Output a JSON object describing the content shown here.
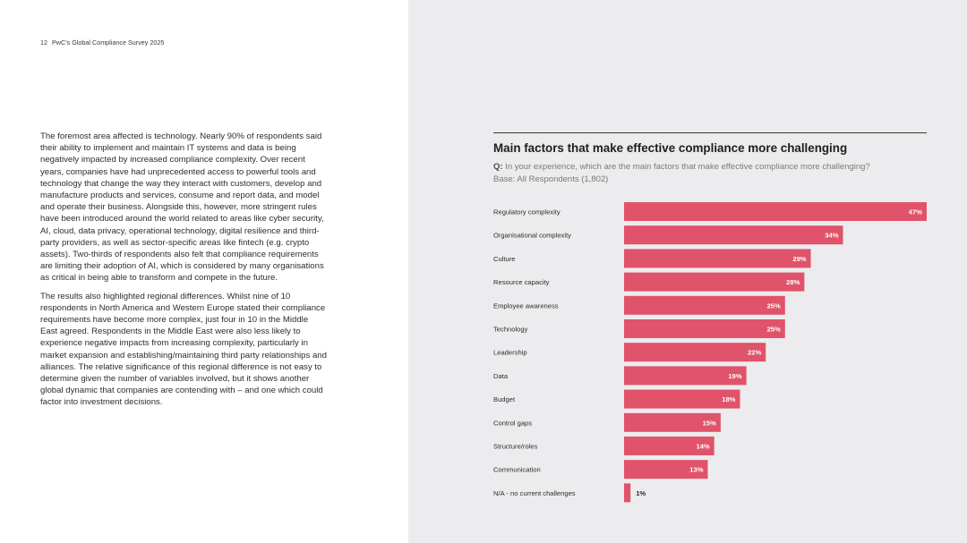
{
  "header": {
    "page_number": "12",
    "publication": "PwC’s Global Compliance Survey 2025"
  },
  "body": {
    "paragraph_1": "The foremost area affected is technology. Nearly 90% of respondents said their ability to implement and maintain IT systems and data is being negatively impacted by increased compliance complexity. Over recent years, companies have had unprecedented access to powerful tools and technology that change the way they interact with customers, develop and manufacture products and services, consume and report data, and model and operate their business. Alongside this, however, more stringent rules have been introduced around the world related to areas like cyber security, AI, cloud, data privacy, operational technology, digital resilience and third-party providers, as well as sector-specific areas like fintech (e.g. crypto assets). Two-thirds of respondents also felt that compliance requirements are limiting their adoption of AI, which is considered by many organisations as critical in being able to transform and compete in the future.",
    "paragraph_2": "The results also highlighted regional differences. Whilst nine of 10 respondents in North America and Western Europe stated their compliance requirements have become more complex, just four in 10 in the Middle East agreed. Respondents in the Middle East were also less likely to experience negative impacts from increasing complexity, particularly in market expansion and establishing/maintaining third party relationships and alliances. The relative significance of this regional difference is not easy to determine given the number of variables involved, but it shows another global dynamic that companies are contending with – and one which could factor into investment decisions."
  },
  "chart_data": {
    "type": "bar",
    "orientation": "horizontal",
    "title": "Main factors that make effective compliance more challenging",
    "question_prefix": "Q:",
    "question": "In your experience, which are the main factors that make effective compliance more challenging?",
    "base": "Base: All Respondents (1,802)",
    "categories": [
      "Regulatory complexity",
      "Organisational complexity",
      "Culture",
      "Resource capacity",
      "Employee awareness",
      "Technology",
      "Leadership",
      "Data",
      "Budget",
      "Control gaps",
      "Structure/roles",
      "Communication",
      "N/A - no current challenges"
    ],
    "values": [
      47,
      34,
      29,
      28,
      25,
      25,
      22,
      19,
      18,
      15,
      14,
      13,
      1
    ],
    "value_labels": [
      "47%",
      "34%",
      "29%",
      "28%",
      "25%",
      "25%",
      "22%",
      "19%",
      "18%",
      "15%",
      "14%",
      "13%",
      "1%"
    ],
    "unit": "%",
    "xlim": [
      0,
      47
    ],
    "grid": false,
    "legend": "none"
  },
  "colors": {
    "bar": "#e0536a",
    "label_inside": "#ffffff",
    "label_outside": "#2d2d2d",
    "right_panel_bg": "#ececee"
  }
}
